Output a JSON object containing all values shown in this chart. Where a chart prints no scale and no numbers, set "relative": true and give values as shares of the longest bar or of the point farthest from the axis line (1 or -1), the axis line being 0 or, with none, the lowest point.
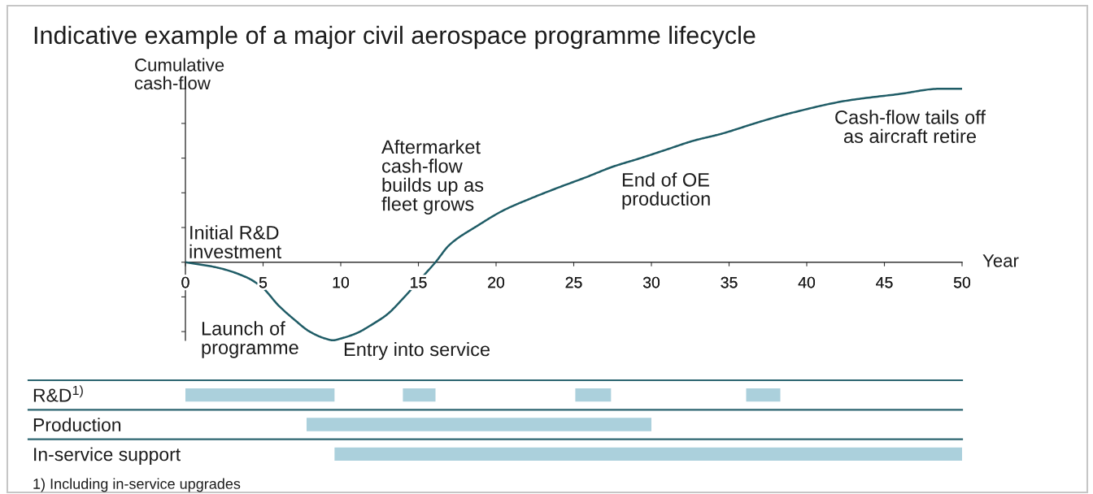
{
  "chart_data": [
    {
      "type": "line",
      "title": "Indicative example of a major civil aerospace programme lifecycle",
      "ylabel": "Cumulative\ncash-flow",
      "xlabel": "Year",
      "relative": true,
      "x": [
        0,
        2,
        4,
        5,
        6,
        7,
        8,
        9,
        9.5,
        10,
        11,
        12,
        13,
        14,
        15,
        16.1,
        17,
        18.8,
        20.5,
        22.3,
        24,
        25.8,
        27.5,
        29.3,
        31,
        32.7,
        34.5,
        37,
        39,
        42.5,
        46,
        48.6,
        50
      ],
      "series": [
        {
          "color": "#1f5c66",
          "values": [
            0,
            -0.03,
            -0.09,
            -0.15,
            -0.25,
            -0.33,
            -0.4,
            -0.44,
            -0.45,
            -0.44,
            -0.41,
            -0.36,
            -0.3,
            -0.21,
            -0.11,
            0,
            0.1,
            0.21,
            0.3,
            0.37,
            0.43,
            0.49,
            0.55,
            0.6,
            0.65,
            0.7,
            0.74,
            0.81,
            0.86,
            0.93,
            0.97,
            1,
            1
          ]
        }
      ],
      "xlim": [
        0,
        50
      ],
      "xticks": [
        0,
        5,
        10,
        15,
        20,
        25,
        30,
        35,
        40,
        45,
        50
      ],
      "tick_labels": "x",
      "annotations": [
        "Initial R&D\ninvestment",
        "Launch of\nprogramme",
        "Entry into service",
        "Aftermarket\ncash-flow\nbuilds up as\nfleet grows",
        "End of OE\nproduction",
        "Cash-flow tails off\nas aircraft retire"
      ]
    },
    {
      "type": "bar",
      "orientation": "horizontal",
      "categories": [
        "R&D$^{1)}$",
        "Production",
        "In-service support"
      ],
      "series": [
        {
          "color": "#abd0dc",
          "values": [
            9.6,
            22.2,
            40.4
          ],
          "base": [
            0,
            7.8,
            9.6
          ]
        },
        {
          "color": "#abd0dc",
          "values": [
            2.1,
            null,
            null
          ],
          "base": [
            14,
            null,
            null
          ]
        },
        {
          "color": "#abd0dc",
          "values": [
            2.3,
            null,
            null
          ],
          "base": [
            25.1,
            null,
            null
          ]
        },
        {
          "color": "#abd0dc",
          "values": [
            2.2,
            null,
            null
          ],
          "base": [
            36.1,
            null,
            null
          ]
        }
      ],
      "xlim": [
        0,
        50
      ],
      "tick_labels": "y",
      "annotations": [
        "1) Including in-service upgrades"
      ]
    }
  ]
}
